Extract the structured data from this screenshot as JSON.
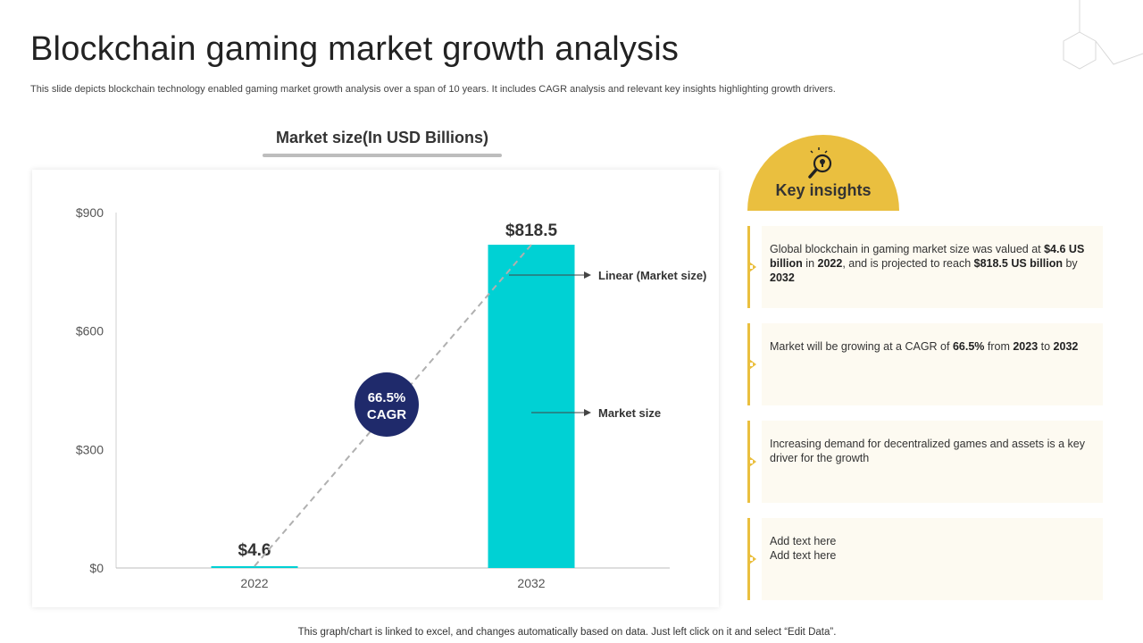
{
  "slide": {
    "title": "Blockchain gaming market growth analysis",
    "subtitle": "This slide depicts blockchain technology enabled gaming market growth analysis over a span of 10 years. It includes CAGR analysis and relevant key insights highlighting growth drivers.",
    "footer": "This graph/chart is linked to excel, and changes automatically based on data. Just left click on it and select “Edit Data”."
  },
  "chart_data": {
    "type": "bar",
    "title": "Market size(In USD Billions)",
    "categories": [
      "2022",
      "2032"
    ],
    "series": [
      {
        "name": "Market size",
        "values": [
          4.6,
          818.5
        ],
        "color": "#00d1d4"
      }
    ],
    "data_labels": [
      "$4.6",
      "$818.5"
    ],
    "y_ticks": [
      0,
      300,
      600,
      900
    ],
    "y_tick_labels": [
      "$0",
      "$300",
      "$600",
      "$900"
    ],
    "ylim": [
      0,
      900
    ],
    "trendline": {
      "name": "Linear (Market size)",
      "style": "dashed",
      "color": "#b0b0b0"
    },
    "annotations": {
      "cagr_value": "66.5%",
      "cagr_label": "CAGR",
      "cagr_badge_color": "#1f2a6b",
      "callout_linear": "Linear (Market size)",
      "callout_market": "Market size"
    },
    "grid": false
  },
  "key_insights": {
    "title": "Key insights",
    "accent_color": "#eabf3f",
    "icon": "bulb-magnifier-icon",
    "cards": [
      {
        "segments": [
          {
            "text": "Global blockchain in gaming market size was valued  at ",
            "bold": false
          },
          {
            "text": "$4.6 US billion",
            "bold": true
          },
          {
            "text": " in ",
            "bold": false
          },
          {
            "text": "2022",
            "bold": true
          },
          {
            "text": ",  and is projected to reach  ",
            "bold": false
          },
          {
            "text": "$818.5 US billion",
            "bold": true
          },
          {
            "text": " by ",
            "bold": false
          },
          {
            "text": "2032",
            "bold": true
          }
        ]
      },
      {
        "segments": [
          {
            "text": "Market will be growing at a CAGR of ",
            "bold": false
          },
          {
            "text": "66.5%",
            "bold": true
          },
          {
            "text": " from ",
            "bold": false
          },
          {
            "text": "2023",
            "bold": true
          },
          {
            "text": " to ",
            "bold": false
          },
          {
            "text": "2032",
            "bold": true
          }
        ]
      },
      {
        "segments": [
          {
            "text": "Increasing demand for decentralized games and assets is a key driver  for the growth",
            "bold": false
          }
        ]
      },
      {
        "segments": [
          {
            "text": "Add text here",
            "bold": false
          },
          {
            "text": "\n",
            "bold": false
          },
          {
            "text": "Add text here",
            "bold": false
          }
        ]
      }
    ]
  }
}
